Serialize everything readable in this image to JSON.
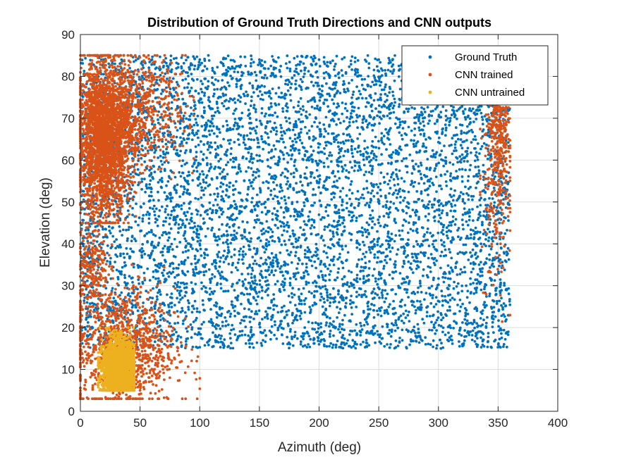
{
  "chart_data": {
    "type": "scatter",
    "title": "Distribution of Ground Truth Directions and CNN outputs",
    "xlabel": "Azimuth (deg)",
    "ylabel": "Elevation (deg)",
    "xlim": [
      0,
      400
    ],
    "ylim": [
      0,
      90
    ],
    "xticks": [
      0,
      50,
      100,
      150,
      200,
      250,
      300,
      350,
      400
    ],
    "yticks": [
      0,
      10,
      20,
      30,
      40,
      50,
      60,
      70,
      80,
      90
    ],
    "grid": true,
    "legend_position": "top-right",
    "series": [
      {
        "name": "Ground Truth",
        "color": "#0072BD",
        "distribution": "uniform",
        "azimuth_range": [
          0,
          360
        ],
        "elevation_range": [
          15,
          85
        ],
        "sample_points": [
          [
            20,
            84
          ],
          [
            60,
            84
          ],
          [
            100,
            84
          ],
          [
            150,
            84
          ],
          [
            200,
            84
          ],
          [
            250,
            84
          ],
          [
            300,
            84
          ],
          [
            355,
            84
          ],
          [
            60,
            70
          ],
          [
            120,
            65
          ],
          [
            180,
            60
          ],
          [
            240,
            55
          ],
          [
            300,
            50
          ],
          [
            100,
            40
          ],
          [
            160,
            35
          ],
          [
            220,
            30
          ],
          [
            280,
            25
          ],
          [
            340,
            20
          ],
          [
            120,
            16
          ],
          [
            200,
            16
          ],
          [
            260,
            16
          ],
          [
            320,
            16
          ],
          [
            355,
            16
          ],
          [
            150,
            50
          ],
          [
            250,
            45
          ],
          [
            200,
            72
          ],
          [
            310,
            70
          ],
          [
            90,
            55
          ],
          [
            330,
            40
          ],
          [
            180,
            22
          ]
        ]
      },
      {
        "name": "CNN trained",
        "color": "#D95319",
        "clusters": [
          {
            "azimuth_range": [
              0,
              50
            ],
            "elevation_range": [
              45,
              85
            ],
            "center": [
              20,
              65
            ],
            "density": "very-high"
          },
          {
            "azimuth_range": [
              0,
              95
            ],
            "elevation_range": [
              55,
              85
            ],
            "center": [
              45,
              72
            ],
            "density": "medium"
          },
          {
            "azimuth_range": [
              0,
              100
            ],
            "elevation_range": [
              3,
              35
            ],
            "center": [
              35,
              15
            ],
            "density": "high"
          },
          {
            "azimuth_range": [
              0,
              30
            ],
            "elevation_range": [
              25,
              50
            ],
            "center": [
              10,
              35
            ],
            "density": "low"
          },
          {
            "azimuth_range": [
              335,
              360
            ],
            "elevation_range": [
              15,
              85
            ],
            "center": [
              350,
              70
            ],
            "density": "medium"
          }
        ],
        "sample_points": [
          [
            20,
            65
          ],
          [
            15,
            70
          ],
          [
            25,
            60
          ],
          [
            30,
            68
          ],
          [
            10,
            62
          ],
          [
            22,
            55
          ],
          [
            35,
            75
          ],
          [
            60,
            78
          ],
          [
            80,
            72
          ],
          [
            40,
            20
          ],
          [
            60,
            12
          ],
          [
            75,
            8
          ],
          [
            50,
            5
          ],
          [
            20,
            25
          ],
          [
            5,
            30
          ],
          [
            350,
            75
          ],
          [
            355,
            65
          ],
          [
            345,
            55
          ],
          [
            352,
            40
          ],
          [
            340,
            28
          ]
        ]
      },
      {
        "name": "CNN untrained",
        "color": "#EDB120",
        "clusters": [
          {
            "azimuth_range": [
              15,
              45
            ],
            "elevation_range": [
              5,
              20
            ],
            "center": [
              32,
              10
            ],
            "density": "very-high"
          }
        ],
        "sample_points": [
          [
            32,
            10
          ],
          [
            28,
            8
          ],
          [
            36,
            12
          ],
          [
            30,
            15
          ],
          [
            25,
            6
          ],
          [
            40,
            9
          ],
          [
            33,
            18
          ],
          [
            38,
            6
          ]
        ]
      }
    ]
  }
}
